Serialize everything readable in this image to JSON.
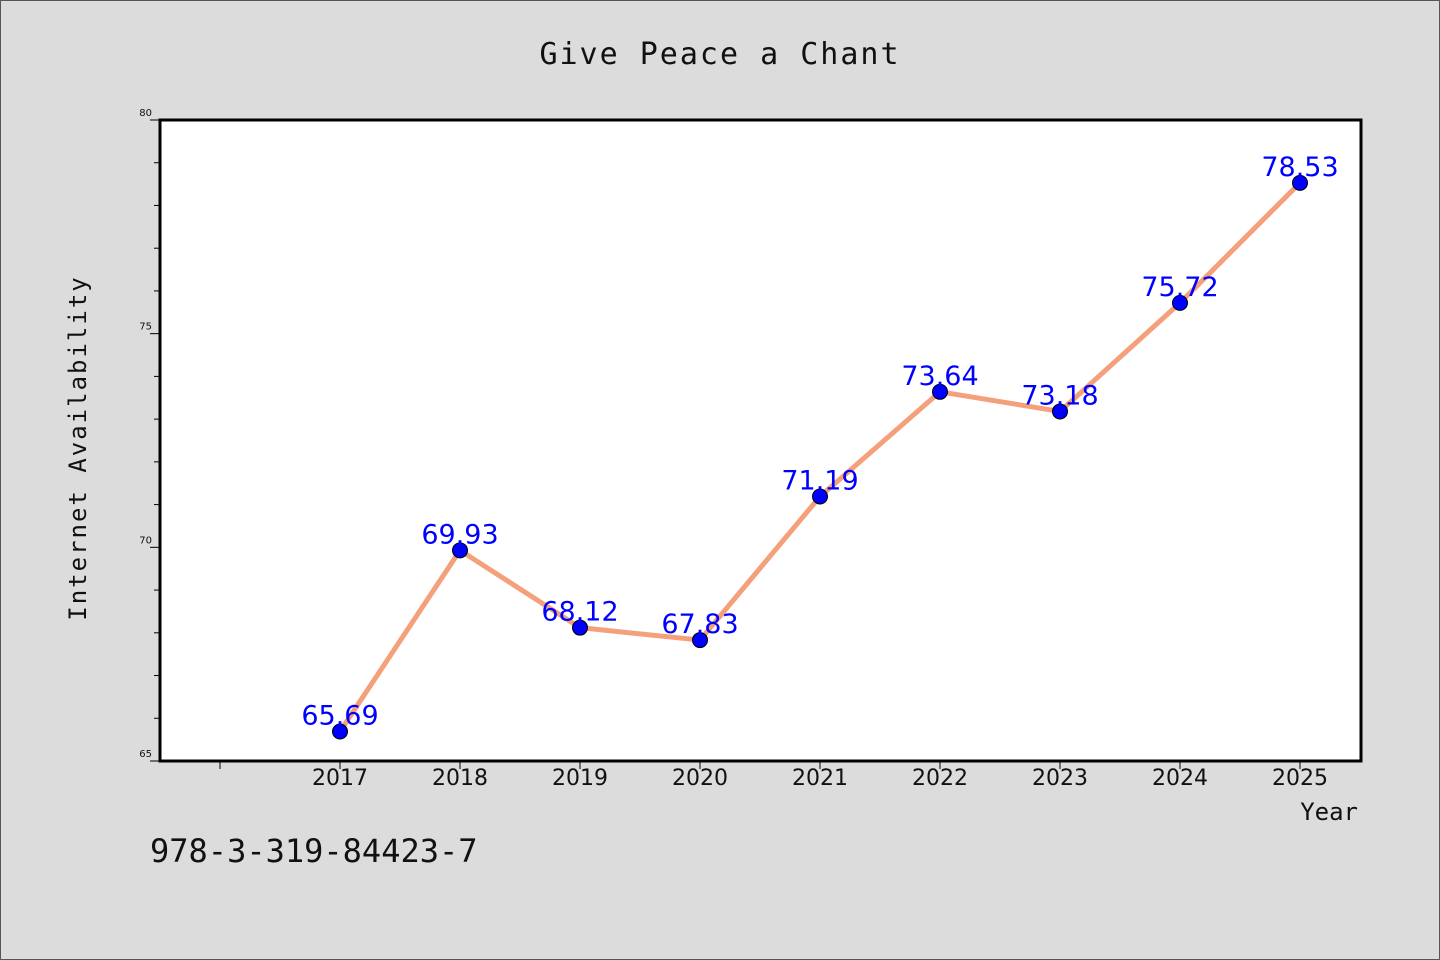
{
  "chart_data": {
    "type": "line",
    "title": "Give Peace a Chant",
    "xlabel": "Year",
    "ylabel": "Internet Availability",
    "categories": [
      "2017",
      "2018",
      "2019",
      "2020",
      "2021",
      "2022",
      "2023",
      "2024",
      "2025"
    ],
    "values": [
      65.69,
      69.93,
      68.12,
      67.83,
      71.19,
      73.64,
      73.18,
      75.72,
      78.53
    ],
    "value_labels": [
      "65.69",
      "69.93",
      "68.12",
      "67.83",
      "71.19",
      "73.64",
      "73.18",
      "75.72",
      "78.53"
    ],
    "ylim": [
      65,
      80
    ],
    "yticks": [
      "65",
      "70",
      "75",
      "80"
    ],
    "grid": false,
    "colors": {
      "line": "#f4a07a",
      "marker": "#0000ff",
      "label": "#0000ff",
      "background": "#dcdcdc",
      "plot_bg": "#ffffff"
    }
  },
  "footer": {
    "isbn": "978-3-319-84423-7"
  }
}
